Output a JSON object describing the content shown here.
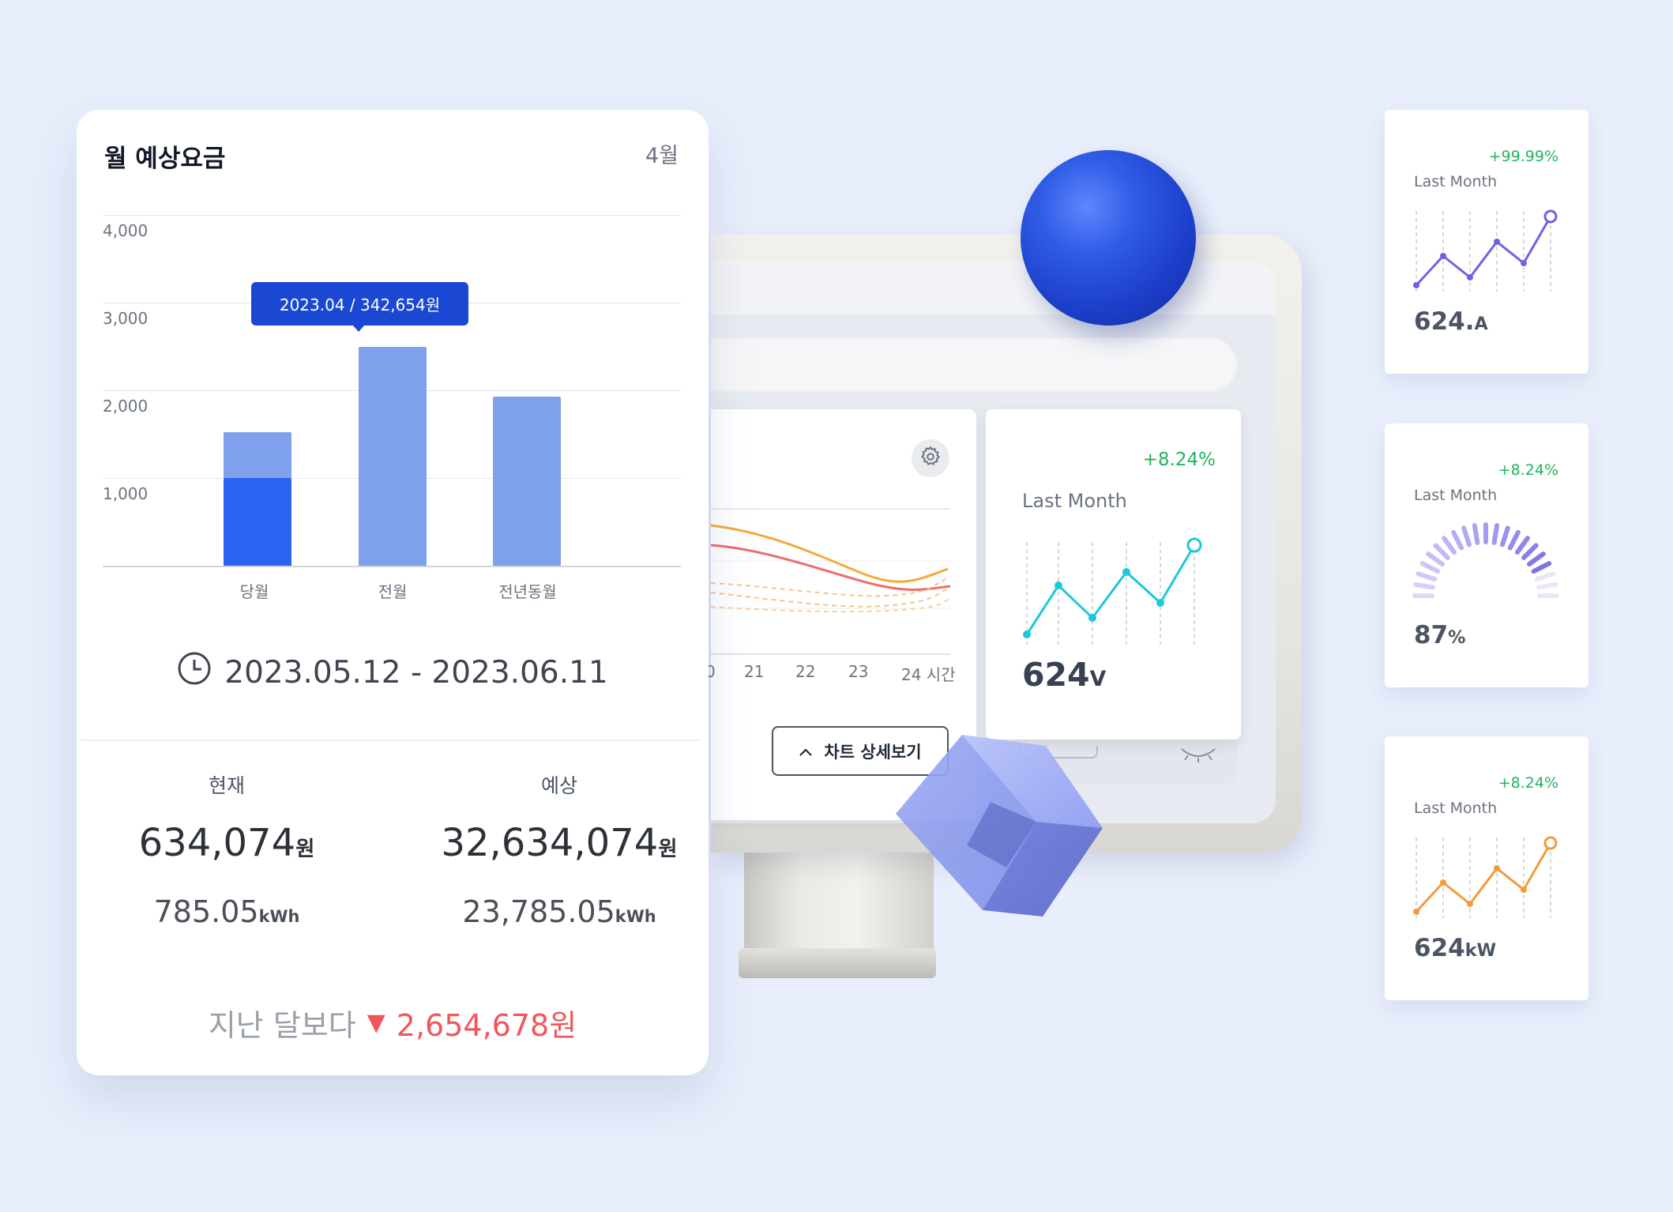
{
  "estimate_card": {
    "title": "월 예상요금",
    "month": "4월",
    "tooltip": "2023.04 / 342,654원",
    "period": "2023.05.12 - 2023.06.11",
    "current_label": "현재",
    "forecast_label": "예상",
    "current_amount": "634,074",
    "current_unit": "원",
    "forecast_amount": "32,634,074",
    "forecast_unit": "원",
    "current_usage": "785.05",
    "current_usage_unit": "kWh",
    "forecast_usage": "23,785.05",
    "forecast_usage_unit": "kWh",
    "compare_label": "지난 달보다",
    "compare_arrow": "▼",
    "compare_amount": "2,654,678원",
    "colors": {
      "bar_dark": "#2b64f0",
      "bar_light": "#7fa1ec",
      "tooltip": "#1b48d2",
      "decrease": "#f0575a"
    }
  },
  "chart_data": {
    "type": "bar",
    "categories": [
      "당월",
      "전월",
      "전년동월"
    ],
    "series": [
      {
        "values": [
          1000,
          0,
          0
        ]
      },
      {
        "values": [
          520,
          2500,
          1930
        ]
      }
    ],
    "yticks": [
      "1,000",
      "2,000",
      "3,000",
      "4,000"
    ],
    "ylim": [
      0,
      4000
    ]
  },
  "monitor": {
    "hour_labels": [
      "0",
      "21",
      "22",
      "23",
      "24 시간"
    ],
    "detail_button": "차트 상세보기",
    "panel_change": "+8.24%",
    "panel_sub": "Last Month",
    "panel_value": "624",
    "panel_unit": "V",
    "panel_color": "#1ec8dc"
  },
  "mini_cards": [
    {
      "change": "+99.99%",
      "sub": "Last Month",
      "value": "624.",
      "unit": "A",
      "color": "#6e62e4"
    },
    {
      "change": "+8.24%",
      "sub": "Last Month",
      "value": "87",
      "unit": "%",
      "gauge": 0.87,
      "color": "#6e62e4"
    },
    {
      "change": "+8.24%",
      "sub": "Last Month",
      "value": "624",
      "unit": "kW",
      "color": "#f29b38"
    }
  ]
}
